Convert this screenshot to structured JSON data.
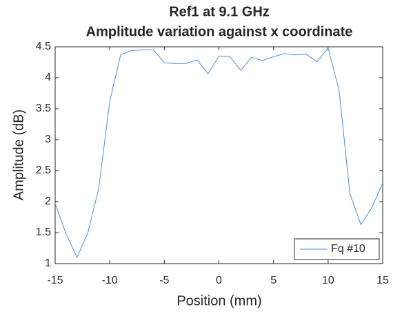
{
  "chart_data": {
    "type": "line",
    "title": [
      "Ref1 at 9.1 GHz",
      "Amplitude variation against x coordinate"
    ],
    "xlabel": "Position (mm)",
    "ylabel": "Amplitude (dB)",
    "x": [
      -15,
      -14,
      -13,
      -12,
      -11,
      -10,
      -9,
      -8,
      -7,
      -6,
      -5,
      -4,
      -3,
      -2,
      -1,
      0,
      1,
      2,
      3,
      4,
      5,
      6,
      7,
      8,
      9,
      10,
      11,
      12,
      13,
      14,
      15
    ],
    "series": [
      {
        "name": "Fq #10",
        "color": "#4a90d9",
        "values": [
          1.97,
          1.48,
          1.1,
          1.5,
          2.22,
          3.62,
          4.37,
          4.44,
          4.45,
          4.45,
          4.24,
          4.23,
          4.23,
          4.29,
          4.06,
          4.35,
          4.34,
          4.12,
          4.33,
          4.28,
          4.34,
          4.39,
          4.37,
          4.38,
          4.26,
          4.48,
          3.8,
          2.13,
          1.63,
          1.9,
          2.3
        ]
      }
    ],
    "xlim": [
      -15,
      15
    ],
    "xticks": [
      -15,
      -10,
      -5,
      0,
      5,
      10,
      15
    ],
    "ylim": [
      1,
      4.5
    ],
    "yticks": [
      1,
      1.5,
      2,
      2.5,
      3,
      3.5,
      4,
      4.5
    ],
    "grid": false,
    "legend": "lower right"
  }
}
